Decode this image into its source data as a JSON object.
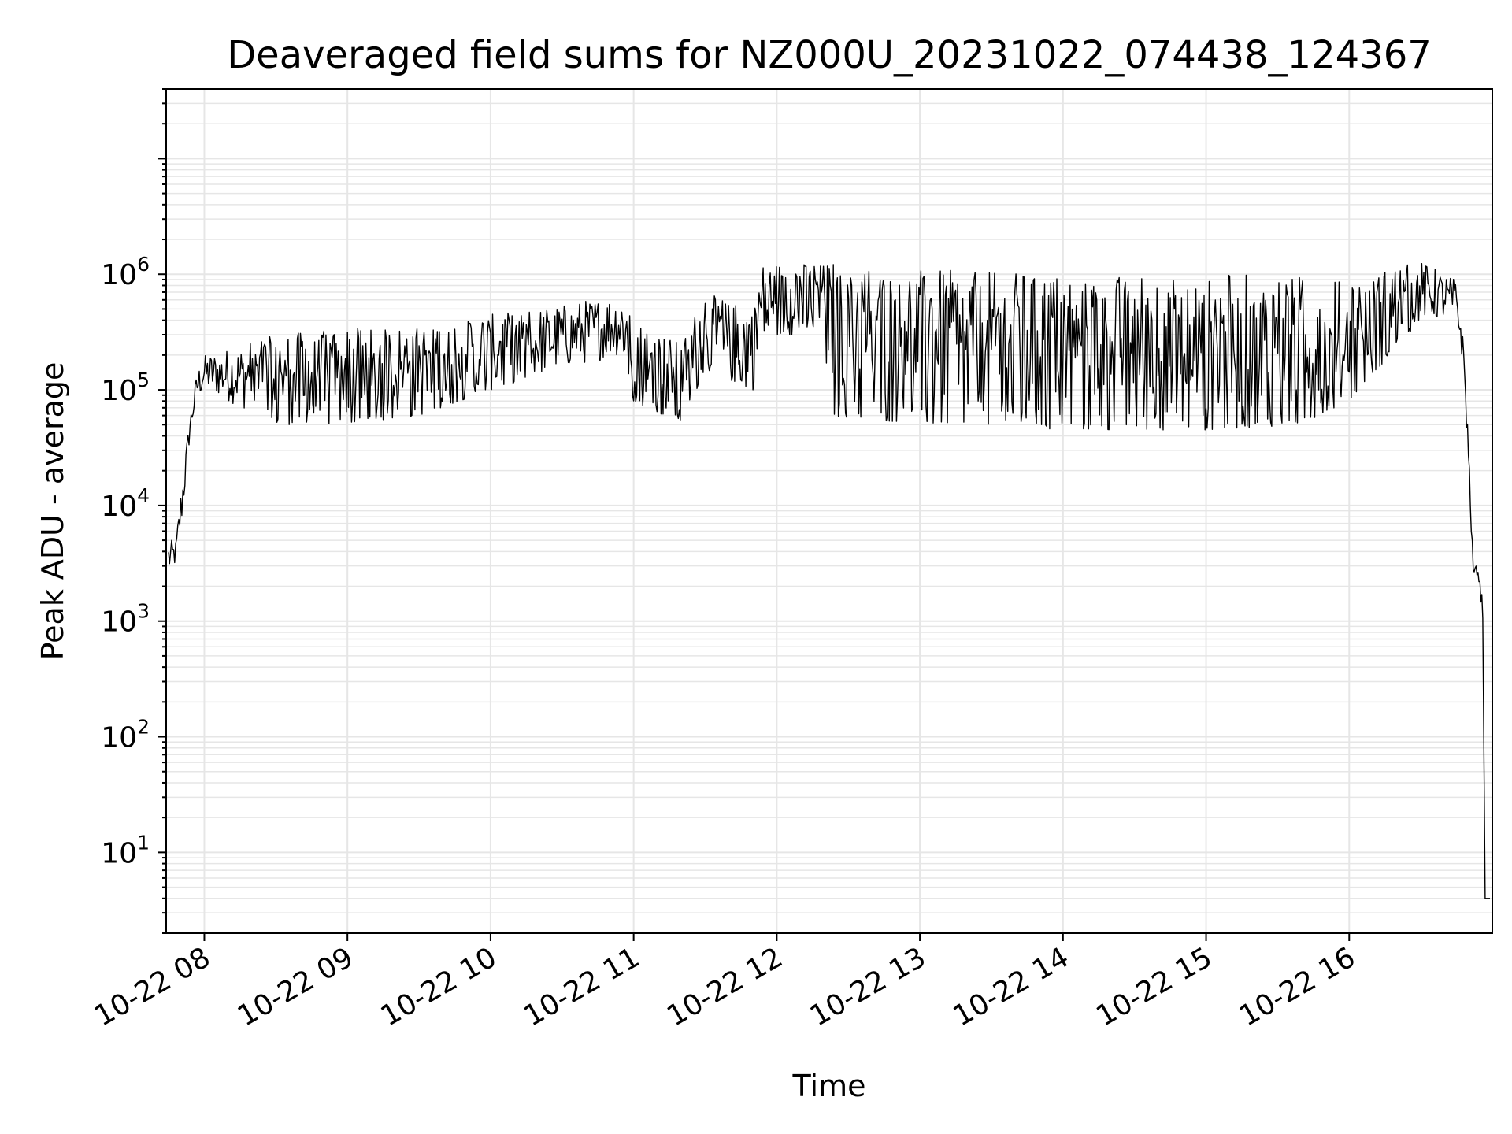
{
  "chart_data": {
    "type": "line",
    "title": "Deaveraged field sums for NZ000U_20231022_074438_124367",
    "xlabel": "Time",
    "ylabel": "Peak ADU - average",
    "yscale": "log",
    "ylim": [
      2,
      40000000
    ],
    "xlim": [
      "2023-10-22 07:44",
      "2023-10-22 17:00"
    ],
    "grid": true,
    "line_color": "#000000",
    "grid_color": "#e6e6e6",
    "x_ticks": [
      {
        "value": "2023-10-22 08:00",
        "label": "10-22 08"
      },
      {
        "value": "2023-10-22 09:00",
        "label": "10-22 09"
      },
      {
        "value": "2023-10-22 10:00",
        "label": "10-22 10"
      },
      {
        "value": "2023-10-22 11:00",
        "label": "10-22 11"
      },
      {
        "value": "2023-10-22 12:00",
        "label": "10-22 12"
      },
      {
        "value": "2023-10-22 13:00",
        "label": "10-22 13"
      },
      {
        "value": "2023-10-22 14:00",
        "label": "10-22 14"
      },
      {
        "value": "2023-10-22 15:00",
        "label": "10-22 15"
      },
      {
        "value": "2023-10-22 16:00",
        "label": "10-22 16"
      }
    ],
    "y_ticks": [
      {
        "value": 10,
        "base": "10",
        "exp": "1"
      },
      {
        "value": 100,
        "base": "10",
        "exp": "2"
      },
      {
        "value": 1000,
        "base": "10",
        "exp": "3"
      },
      {
        "value": 10000,
        "base": "10",
        "exp": "4"
      },
      {
        "value": 100000,
        "base": "10",
        "exp": "5"
      },
      {
        "value": 1000000,
        "base": "10",
        "exp": "6"
      }
    ],
    "series": [
      {
        "envelope": [
          {
            "x": "2023-10-22 07:45",
            "low": 2500,
            "high": 5000
          },
          {
            "x": "2023-10-22 07:48",
            "low": 3000,
            "high": 5000
          },
          {
            "x": "2023-10-22 07:51",
            "low": 8000,
            "high": 20000
          },
          {
            "x": "2023-10-22 07:54",
            "low": 40000,
            "high": 60000
          },
          {
            "x": "2023-10-22 07:57",
            "low": 80000,
            "high": 150000
          },
          {
            "x": "2023-10-22 08:00",
            "low": 100000,
            "high": 200000
          },
          {
            "x": "2023-10-22 08:30",
            "low": 50000,
            "high": 300000
          },
          {
            "x": "2023-10-22 09:00",
            "low": 50000,
            "high": 350000
          },
          {
            "x": "2023-10-22 09:30",
            "low": 60000,
            "high": 350000
          },
          {
            "x": "2023-10-22 10:00",
            "low": 100000,
            "high": 450000
          },
          {
            "x": "2023-10-22 10:30",
            "low": 150000,
            "high": 550000
          },
          {
            "x": "2023-10-22 10:55",
            "low": 200000,
            "high": 700000
          },
          {
            "x": "2023-10-22 11:00",
            "low": 80000,
            "high": 400000
          },
          {
            "x": "2023-10-22 11:20",
            "low": 50000,
            "high": 250000
          },
          {
            "x": "2023-10-22 11:30",
            "low": 150000,
            "high": 700000
          },
          {
            "x": "2023-10-22 11:50",
            "low": 100000,
            "high": 500000
          },
          {
            "x": "2023-10-22 11:53",
            "low": 300000,
            "high": 1200000
          },
          {
            "x": "2023-10-22 12:20",
            "low": 300000,
            "high": 1300000
          },
          {
            "x": "2023-10-22 12:22",
            "low": 60000,
            "high": 1300000
          },
          {
            "x": "2023-10-22 13:00",
            "low": 50000,
            "high": 1100000
          },
          {
            "x": "2023-10-22 14:00",
            "low": 45000,
            "high": 1000000
          },
          {
            "x": "2023-10-22 15:00",
            "low": 45000,
            "high": 1000000
          },
          {
            "x": "2023-10-22 15:40",
            "low": 50000,
            "high": 1000000
          },
          {
            "x": "2023-10-22 16:00",
            "low": 80000,
            "high": 900000
          },
          {
            "x": "2023-10-22 16:30",
            "low": 400000,
            "high": 1300000
          },
          {
            "x": "2023-10-22 16:45",
            "low": 400000,
            "high": 900000
          },
          {
            "x": "2023-10-22 16:48",
            "low": 150000,
            "high": 250000
          },
          {
            "x": "2023-10-22 16:50",
            "low": 20000,
            "high": 40000
          },
          {
            "x": "2023-10-22 16:52",
            "low": 2500,
            "high": 3000
          },
          {
            "x": "2023-10-22 16:54",
            "low": 2500,
            "high": 3000
          },
          {
            "x": "2023-10-22 16:56",
            "low": 1000,
            "high": 1500
          },
          {
            "x": "2023-10-22 16:57",
            "low": 4,
            "high": 4
          },
          {
            "x": "2023-10-22 16:59",
            "low": 4,
            "high": 4
          }
        ]
      }
    ]
  }
}
